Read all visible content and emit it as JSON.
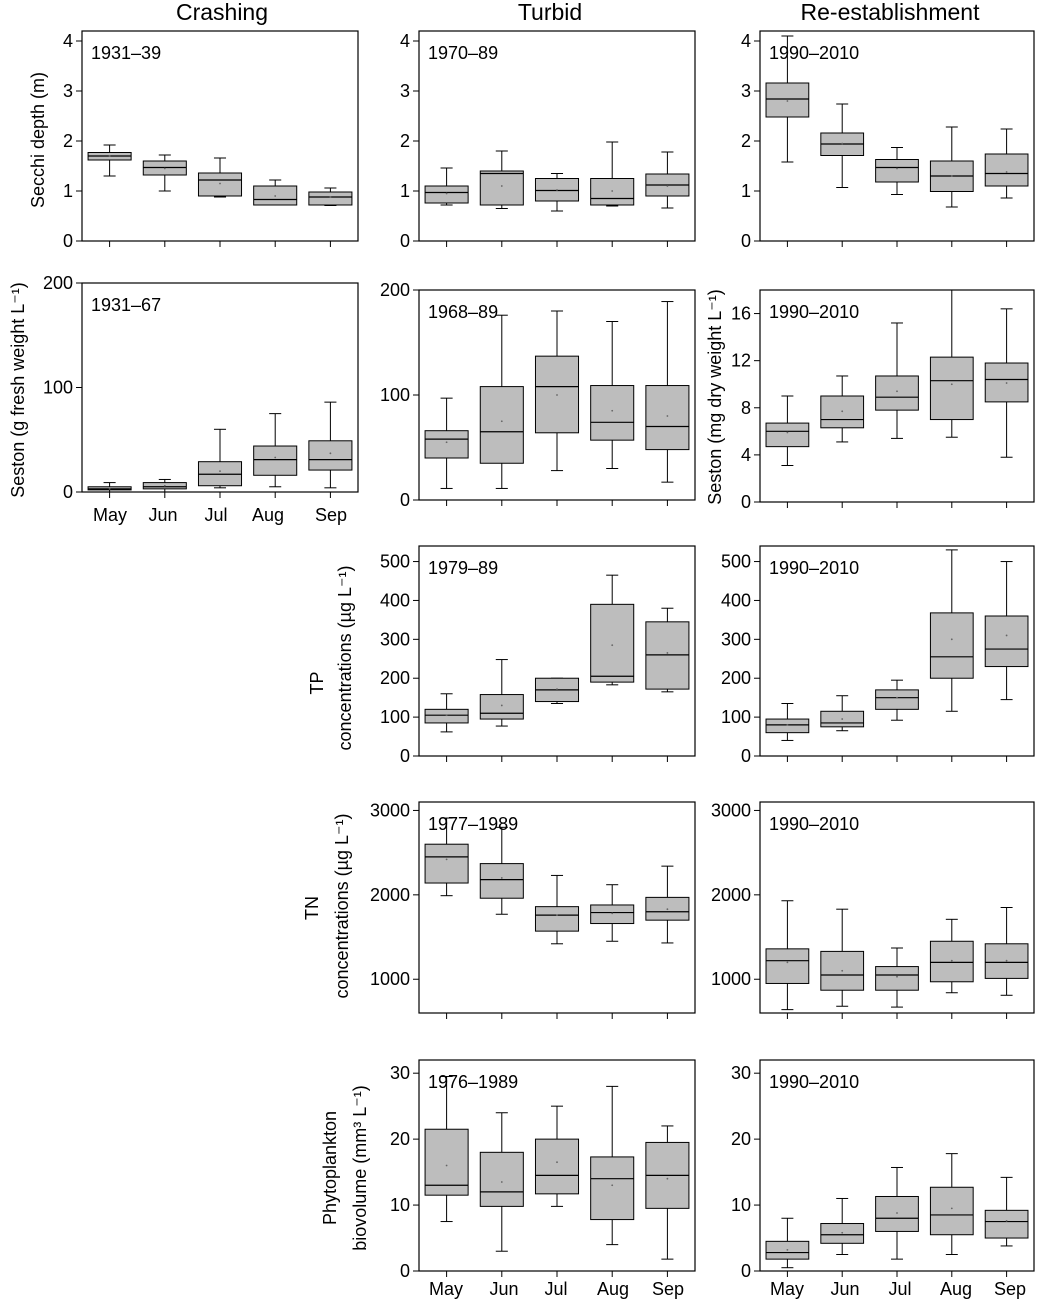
{
  "columns": [
    "Crashing",
    "Turbid",
    "Re-establishment"
  ],
  "months": [
    "May",
    "Jun",
    "Jul",
    "Aug",
    "Sep"
  ],
  "row_labels": {
    "secchi": "Secchi depth (m)",
    "seston_fresh": "Seston (g fresh weight L⁻¹)",
    "seston_dry": "Seston (mg dry weight L⁻¹)",
    "tp": [
      "TP",
      "concentrations (µg L⁻¹)"
    ],
    "tn": [
      "TN",
      "concentrations (µg L⁻¹)"
    ],
    "phyto": [
      "Phytoplankton",
      "biovolume (mm³ L⁻¹)"
    ]
  },
  "colors": {
    "box_fill": "#bdbdbd",
    "stroke": "#000000"
  },
  "chart_data": [
    {
      "id": "secchi-crashing",
      "type": "boxplot",
      "period": "1931–39",
      "ylim": [
        0,
        4.2
      ],
      "yticks": [
        0,
        1,
        2,
        3,
        4
      ],
      "ylabel_key": "secchi",
      "boxes": [
        {
          "month": "May",
          "min": 1.3,
          "q1": 1.62,
          "median": 1.7,
          "q3": 1.77,
          "max": 1.92,
          "mean": 1.7
        },
        {
          "month": "Jun",
          "min": 1.0,
          "q1": 1.32,
          "median": 1.47,
          "q3": 1.6,
          "max": 1.72,
          "mean": 1.45
        },
        {
          "month": "Jul",
          "min": 0.88,
          "q1": 0.9,
          "median": 1.22,
          "q3": 1.36,
          "max": 1.66,
          "mean": 1.15
        },
        {
          "month": "Aug",
          "min": 0.72,
          "q1": 0.72,
          "median": 0.83,
          "q3": 1.1,
          "max": 1.22,
          "mean": 0.9
        },
        {
          "month": "Sep",
          "min": 0.71,
          "q1": 0.72,
          "median": 0.88,
          "q3": 0.98,
          "max": 1.06,
          "mean": 0.88
        }
      ]
    },
    {
      "id": "secchi-turbid",
      "type": "boxplot",
      "period": "1970–89",
      "ylim": [
        0,
        4.2
      ],
      "yticks": [
        0,
        1,
        2,
        3,
        4
      ],
      "ylabel_key": "",
      "boxes": [
        {
          "month": "May",
          "min": 0.72,
          "q1": 0.76,
          "median": 0.97,
          "q3": 1.1,
          "max": 1.46,
          "mean": 0.95
        },
        {
          "month": "Jun",
          "min": 0.65,
          "q1": 0.72,
          "median": 1.35,
          "q3": 1.4,
          "max": 1.8,
          "mean": 1.1
        },
        {
          "month": "Jul",
          "min": 0.6,
          "q1": 0.8,
          "median": 1.01,
          "q3": 1.25,
          "max": 1.35,
          "mean": 1.02
        },
        {
          "month": "Aug",
          "min": 0.7,
          "q1": 0.72,
          "median": 0.85,
          "q3": 1.25,
          "max": 1.98,
          "mean": 1.0
        },
        {
          "month": "Sep",
          "min": 0.66,
          "q1": 0.9,
          "median": 1.12,
          "q3": 1.34,
          "max": 1.78,
          "mean": 1.1
        }
      ]
    },
    {
      "id": "secchi-reestablishment",
      "type": "boxplot",
      "period": "1990–2010",
      "ylim": [
        0,
        4.2
      ],
      "yticks": [
        0,
        1,
        2,
        3,
        4
      ],
      "ylabel_key": "",
      "boxes": [
        {
          "month": "May",
          "min": 1.58,
          "q1": 2.48,
          "median": 2.84,
          "q3": 3.16,
          "max": 4.1,
          "mean": 2.8
        },
        {
          "month": "Jun",
          "min": 1.07,
          "q1": 1.71,
          "median": 1.94,
          "q3": 2.16,
          "max": 2.74,
          "mean": 1.95
        },
        {
          "month": "Jul",
          "min": 0.93,
          "q1": 1.18,
          "median": 1.47,
          "q3": 1.63,
          "max": 1.87,
          "mean": 1.45
        },
        {
          "month": "Aug",
          "min": 0.68,
          "q1": 0.99,
          "median": 1.3,
          "q3": 1.6,
          "max": 2.28,
          "mean": 1.3
        },
        {
          "month": "Sep",
          "min": 0.86,
          "q1": 1.1,
          "median": 1.35,
          "q3": 1.74,
          "max": 2.24,
          "mean": 1.38
        }
      ]
    },
    {
      "id": "seston-crashing",
      "type": "boxplot",
      "period": "1931–67",
      "ylim": [
        0,
        200
      ],
      "yticks": [
        0,
        100,
        200
      ],
      "ylabel_key": "seston_fresh",
      "boxes": [
        {
          "month": "May",
          "min": 0,
          "q1": 2,
          "median": 3,
          "q3": 5,
          "max": 9,
          "mean": 3
        },
        {
          "month": "Jun",
          "min": 0,
          "q1": 3,
          "median": 5,
          "q3": 9,
          "max": 12,
          "mean": 6
        },
        {
          "month": "Jul",
          "min": 4,
          "q1": 6,
          "median": 17,
          "q3": 29,
          "max": 60,
          "mean": 20
        },
        {
          "month": "Aug",
          "min": 5,
          "q1": 16,
          "median": 31,
          "q3": 44,
          "max": 75,
          "mean": 33
        },
        {
          "month": "Sep",
          "min": 4,
          "q1": 21,
          "median": 31,
          "q3": 49,
          "max": 86,
          "mean": 37
        }
      ]
    },
    {
      "id": "seston-turbid",
      "type": "boxplot",
      "period": "1968–89",
      "ylim": [
        0,
        200
      ],
      "yticks": [
        0,
        100,
        200
      ],
      "ylabel_key": "",
      "boxes": [
        {
          "month": "May",
          "min": 11,
          "q1": 40,
          "median": 58,
          "q3": 66,
          "max": 97,
          "mean": 55
        },
        {
          "month": "Jun",
          "min": 11,
          "q1": 35,
          "median": 65,
          "q3": 108,
          "max": 176,
          "mean": 75
        },
        {
          "month": "Jul",
          "min": 28,
          "q1": 64,
          "median": 108,
          "q3": 137,
          "max": 180,
          "mean": 100
        },
        {
          "month": "Aug",
          "min": 30,
          "q1": 57,
          "median": 74,
          "q3": 109,
          "max": 170,
          "mean": 85
        },
        {
          "month": "Sep",
          "min": 17,
          "q1": 48,
          "median": 70,
          "q3": 109,
          "max": 189,
          "mean": 80
        }
      ]
    },
    {
      "id": "seston-reestablishment",
      "type": "boxplot",
      "period": "1990–2010",
      "ylim": [
        0,
        18
      ],
      "yticks": [
        0,
        4,
        8,
        12,
        16
      ],
      "ylabel_key": "seston_dry",
      "boxes": [
        {
          "month": "May",
          "min": 3.1,
          "q1": 4.7,
          "median": 6.0,
          "q3": 6.7,
          "max": 9.0,
          "mean": 5.9
        },
        {
          "month": "Jun",
          "min": 5.1,
          "q1": 6.3,
          "median": 7.0,
          "q3": 9.0,
          "max": 10.7,
          "mean": 7.7
        },
        {
          "month": "Jul",
          "min": 5.4,
          "q1": 7.8,
          "median": 8.9,
          "q3": 10.7,
          "max": 15.2,
          "mean": 9.4
        },
        {
          "month": "Aug",
          "min": 5.5,
          "q1": 7.0,
          "median": 10.3,
          "q3": 12.3,
          "max": 18.0,
          "mean": 10.0
        },
        {
          "month": "Sep",
          "min": 3.8,
          "q1": 8.5,
          "median": 10.4,
          "q3": 11.8,
          "max": 16.4,
          "mean": 10.1
        }
      ]
    },
    {
      "id": "tp-turbid",
      "type": "boxplot",
      "period": "1979–89",
      "ylim": [
        0,
        540
      ],
      "yticks": [
        0,
        100,
        200,
        300,
        400,
        500
      ],
      "ylabel_key": "tp",
      "boxes": [
        {
          "month": "May",
          "min": 62,
          "q1": 85,
          "median": 105,
          "q3": 120,
          "max": 160,
          "mean": 105
        },
        {
          "month": "Jun",
          "min": 77,
          "q1": 95,
          "median": 110,
          "q3": 158,
          "max": 248,
          "mean": 130
        },
        {
          "month": "Jul",
          "min": 135,
          "q1": 140,
          "median": 170,
          "q3": 200,
          "max": 200,
          "mean": 172
        },
        {
          "month": "Aug",
          "min": 183,
          "q1": 190,
          "median": 205,
          "q3": 390,
          "max": 465,
          "mean": 285
        },
        {
          "month": "Sep",
          "min": 165,
          "q1": 172,
          "median": 260,
          "q3": 345,
          "max": 380,
          "mean": 265
        }
      ]
    },
    {
      "id": "tp-reestablishment",
      "type": "boxplot",
      "period": "1990–2010",
      "ylim": [
        0,
        540
      ],
      "yticks": [
        0,
        100,
        200,
        300,
        400,
        500
      ],
      "ylabel_key": "",
      "boxes": [
        {
          "month": "May",
          "min": 40,
          "q1": 60,
          "median": 80,
          "q3": 95,
          "max": 135,
          "mean": 80
        },
        {
          "month": "Jun",
          "min": 65,
          "q1": 75,
          "median": 85,
          "q3": 115,
          "max": 155,
          "mean": 95
        },
        {
          "month": "Jul",
          "min": 92,
          "q1": 120,
          "median": 150,
          "q3": 170,
          "max": 195,
          "mean": 150
        },
        {
          "month": "Aug",
          "min": 115,
          "q1": 200,
          "median": 255,
          "q3": 368,
          "max": 530,
          "mean": 300
        },
        {
          "month": "Sep",
          "min": 145,
          "q1": 230,
          "median": 275,
          "q3": 360,
          "max": 500,
          "mean": 310
        }
      ]
    },
    {
      "id": "tn-turbid",
      "type": "boxplot",
      "period": "1977–1989",
      "ylim": [
        600,
        3100
      ],
      "yticks": [
        1000,
        2000,
        3000
      ],
      "ylabel_key": "tn",
      "boxes": [
        {
          "month": "May",
          "min": 1990,
          "q1": 2140,
          "median": 2450,
          "q3": 2600,
          "max": 2910,
          "mean": 2420
        },
        {
          "month": "Jun",
          "min": 1770,
          "q1": 1960,
          "median": 2180,
          "q3": 2370,
          "max": 2800,
          "mean": 2200
        },
        {
          "month": "Jul",
          "min": 1420,
          "q1": 1570,
          "median": 1760,
          "q3": 1860,
          "max": 2230,
          "mean": 1760
        },
        {
          "month": "Aug",
          "min": 1450,
          "q1": 1660,
          "median": 1790,
          "q3": 1880,
          "max": 2120,
          "mean": 1780
        },
        {
          "month": "Sep",
          "min": 1430,
          "q1": 1700,
          "median": 1800,
          "q3": 1970,
          "max": 2340,
          "mean": 1830
        }
      ]
    },
    {
      "id": "tn-reestablishment",
      "type": "boxplot",
      "period": "1990–2010",
      "ylim": [
        600,
        3100
      ],
      "yticks": [
        1000,
        2000,
        3000
      ],
      "ylabel_key": "",
      "boxes": [
        {
          "month": "May",
          "min": 640,
          "q1": 950,
          "median": 1220,
          "q3": 1360,
          "max": 1930,
          "mean": 1200
        },
        {
          "month": "Jun",
          "min": 680,
          "q1": 870,
          "median": 1050,
          "q3": 1330,
          "max": 1830,
          "mean": 1100
        },
        {
          "month": "Jul",
          "min": 670,
          "q1": 870,
          "median": 1050,
          "q3": 1150,
          "max": 1370,
          "mean": 1030
        },
        {
          "month": "Aug",
          "min": 840,
          "q1": 970,
          "median": 1200,
          "q3": 1450,
          "max": 1710,
          "mean": 1220
        },
        {
          "month": "Sep",
          "min": 810,
          "q1": 1010,
          "median": 1200,
          "q3": 1420,
          "max": 1850,
          "mean": 1220
        }
      ]
    },
    {
      "id": "phyto-turbid",
      "type": "boxplot",
      "period": "1976–1989",
      "ylim": [
        0,
        32
      ],
      "yticks": [
        0,
        10,
        20,
        30
      ],
      "ylabel_key": "phyto",
      "boxes": [
        {
          "month": "May",
          "min": 7.5,
          "q1": 11.5,
          "median": 13.0,
          "q3": 21.5,
          "max": 29.5,
          "mean": 16.0
        },
        {
          "month": "Jun",
          "min": 3.0,
          "q1": 9.8,
          "median": 12.0,
          "q3": 18.0,
          "max": 24.0,
          "mean": 13.5
        },
        {
          "month": "Jul",
          "min": 9.8,
          "q1": 11.7,
          "median": 14.5,
          "q3": 20.0,
          "max": 25.0,
          "mean": 16.5
        },
        {
          "month": "Aug",
          "min": 4.0,
          "q1": 7.8,
          "median": 14.0,
          "q3": 17.3,
          "max": 28.0,
          "mean": 13.0
        },
        {
          "month": "Sep",
          "min": 1.8,
          "q1": 9.5,
          "median": 14.5,
          "q3": 19.5,
          "max": 22.0,
          "mean": 14.0
        }
      ]
    },
    {
      "id": "phyto-reestablishment",
      "type": "boxplot",
      "period": "1990–2010",
      "ylim": [
        0,
        32
      ],
      "yticks": [
        0,
        10,
        20,
        30
      ],
      "ylabel_key": "",
      "boxes": [
        {
          "month": "May",
          "min": 0.5,
          "q1": 1.8,
          "median": 2.8,
          "q3": 4.5,
          "max": 8.0,
          "mean": 3.2
        },
        {
          "month": "Jun",
          "min": 2.5,
          "q1": 4.2,
          "median": 5.5,
          "q3": 7.2,
          "max": 11.0,
          "mean": 5.8
        },
        {
          "month": "Jul",
          "min": 1.8,
          "q1": 6.0,
          "median": 8.0,
          "q3": 11.3,
          "max": 15.7,
          "mean": 8.8
        },
        {
          "month": "Aug",
          "min": 2.5,
          "q1": 5.5,
          "median": 8.5,
          "q3": 12.7,
          "max": 17.8,
          "mean": 9.5
        },
        {
          "month": "Sep",
          "min": 3.8,
          "q1": 5.0,
          "median": 7.5,
          "q3": 9.2,
          "max": 14.2,
          "mean": 7.6
        }
      ]
    }
  ]
}
